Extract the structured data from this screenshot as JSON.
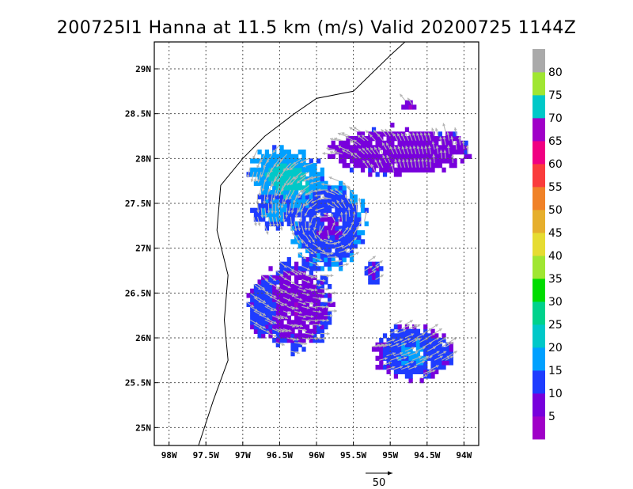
{
  "title": "200725I1 Hanna at 11.5 km (m/s) Valid 20200725 1144Z",
  "map": {
    "lon_range": [
      -98.2,
      -93.8
    ],
    "lat_range": [
      24.8,
      29.3
    ],
    "lon_ticks": [
      {
        "value": -98.0,
        "label": "98W"
      },
      {
        "value": -97.5,
        "label": "97.5W"
      },
      {
        "value": -97.0,
        "label": "97W"
      },
      {
        "value": -96.5,
        "label": "96.5W"
      },
      {
        "value": -96.0,
        "label": "96W"
      },
      {
        "value": -95.5,
        "label": "95.5W"
      },
      {
        "value": -95.0,
        "label": "95W"
      },
      {
        "value": -94.5,
        "label": "94.5W"
      },
      {
        "value": -94.0,
        "label": "94W"
      }
    ],
    "lat_ticks": [
      {
        "value": 29.0,
        "label": "29N"
      },
      {
        "value": 28.5,
        "label": "28.5N"
      },
      {
        "value": 28.0,
        "label": "28N"
      },
      {
        "value": 27.5,
        "label": "27.5N"
      },
      {
        "value": 27.0,
        "label": "27N"
      },
      {
        "value": 26.5,
        "label": "26.5N"
      },
      {
        "value": 26.0,
        "label": "26N"
      },
      {
        "value": 25.5,
        "label": "25.5N"
      },
      {
        "value": 25.0,
        "label": "25N"
      }
    ],
    "grid": true,
    "coastline": [
      [
        -97.6,
        24.8
      ],
      [
        -97.4,
        25.3
      ],
      [
        -97.2,
        25.75
      ],
      [
        -97.25,
        26.2
      ],
      [
        -97.2,
        26.7
      ],
      [
        -97.35,
        27.2
      ],
      [
        -97.3,
        27.7
      ],
      [
        -97.0,
        28.0
      ],
      [
        -96.7,
        28.25
      ],
      [
        -96.3,
        28.5
      ],
      [
        -96.0,
        28.67
      ],
      [
        -95.5,
        28.75
      ],
      [
        -95.0,
        29.15
      ],
      [
        -94.8,
        29.3
      ]
    ]
  },
  "wind_regions": [
    {
      "name": "northwest-cluster",
      "center": [
        -96.4,
        27.78
      ],
      "radius": [
        0.55,
        0.33
      ],
      "speed_center": 25,
      "speed_edge": 15,
      "rotation_deg": -10
    },
    {
      "name": "north-east-band",
      "center": [
        -94.9,
        28.12
      ],
      "radius": [
        0.95,
        0.26
      ],
      "speed_center": 6,
      "speed_edge": 9,
      "rotation_deg": 0
    },
    {
      "name": "central-ring",
      "center": [
        -95.85,
        27.3
      ],
      "radius": [
        0.5,
        0.48
      ],
      "speed_center": 8,
      "speed_edge": 16,
      "rotation_deg": 0
    },
    {
      "name": "west-arm",
      "center": [
        -96.6,
        27.42
      ],
      "radius": [
        0.3,
        0.2
      ],
      "speed_center": 18,
      "speed_edge": 12,
      "rotation_deg": 0
    },
    {
      "name": "southern-block",
      "center": [
        -96.3,
        26.4
      ],
      "radius": [
        0.5,
        0.5
      ],
      "speed_center": 5,
      "speed_edge": 11,
      "rotation_deg": 15
    },
    {
      "name": "southwest-arm",
      "center": [
        -96.78,
        26.35
      ],
      "radius": [
        0.2,
        0.35
      ],
      "speed_center": 14,
      "speed_edge": 10,
      "rotation_deg": 0
    },
    {
      "name": "east-small",
      "center": [
        -95.25,
        26.75
      ],
      "radius": [
        0.12,
        0.14
      ],
      "speed_center": 9,
      "speed_edge": 12,
      "rotation_deg": 0
    },
    {
      "name": "southeast-cluster",
      "center": [
        -94.7,
        25.85
      ],
      "radius": [
        0.55,
        0.3
      ],
      "speed_center": 18,
      "speed_edge": 9,
      "rotation_deg": 0
    },
    {
      "name": "north-blob",
      "center": [
        -94.8,
        28.62
      ],
      "radius": [
        0.1,
        0.05
      ],
      "speed_center": 6,
      "speed_edge": 6,
      "rotation_deg": 0
    }
  ],
  "colorbar": {
    "colors": [
      "#a000c8",
      "#7800dc",
      "#1e3cff",
      "#00a0ff",
      "#00c8c8",
      "#00d28c",
      "#00dc00",
      "#a0e632",
      "#e6dc32",
      "#e6af2d",
      "#f08228",
      "#fa3c3c",
      "#f00082",
      "#a000c8",
      "#00c8c8",
      "#a0e632",
      "#aaaaaa"
    ],
    "labels": [
      "5",
      "10",
      "15",
      "20",
      "25",
      "30",
      "35",
      "40",
      "45",
      "50",
      "55",
      "60",
      "65",
      "70",
      "75",
      "80"
    ]
  },
  "reference_vector": {
    "label": "50",
    "speed": 50
  }
}
